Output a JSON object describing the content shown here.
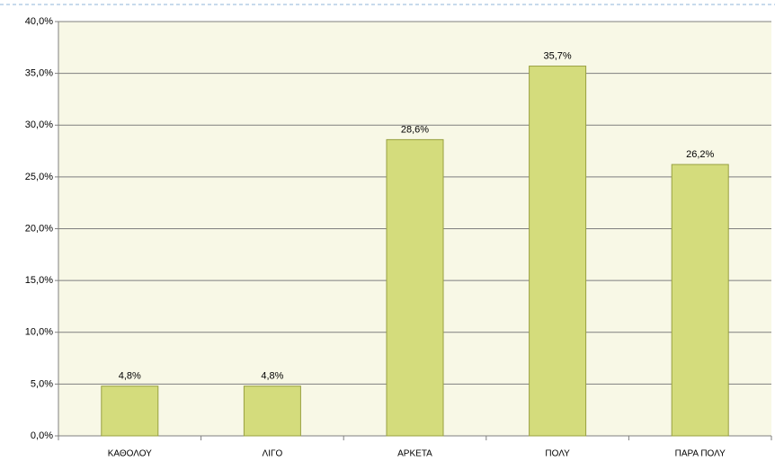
{
  "chart_data": {
    "type": "bar",
    "categories": [
      "ΚΑΘΟΛΟΥ",
      "ΛΙΓΟ",
      "ΑΡΚΕΤΑ",
      "ΠΟΛΥ",
      "ΠΑΡΑ ΠΟΛΥ"
    ],
    "values": [
      4.8,
      4.8,
      28.6,
      35.7,
      26.2
    ],
    "value_labels": [
      "4,8%",
      "4,8%",
      "28,6%",
      "35,7%",
      "26,2%"
    ],
    "color": "#d4dc7c",
    "ylim": [
      0,
      40
    ],
    "yticks": [
      {
        "value": 0,
        "label": "0,0%"
      },
      {
        "value": 5,
        "label": "5,0%"
      },
      {
        "value": 10,
        "label": "10,0%"
      },
      {
        "value": 15,
        "label": "15,0%"
      },
      {
        "value": 20,
        "label": "20,0%"
      },
      {
        "value": 25,
        "label": "25,0%"
      },
      {
        "value": 30,
        "label": "30,0%"
      },
      {
        "value": 35,
        "label": "35,0%"
      },
      {
        "value": 40,
        "label": "40,0%"
      }
    ],
    "grid": true
  }
}
